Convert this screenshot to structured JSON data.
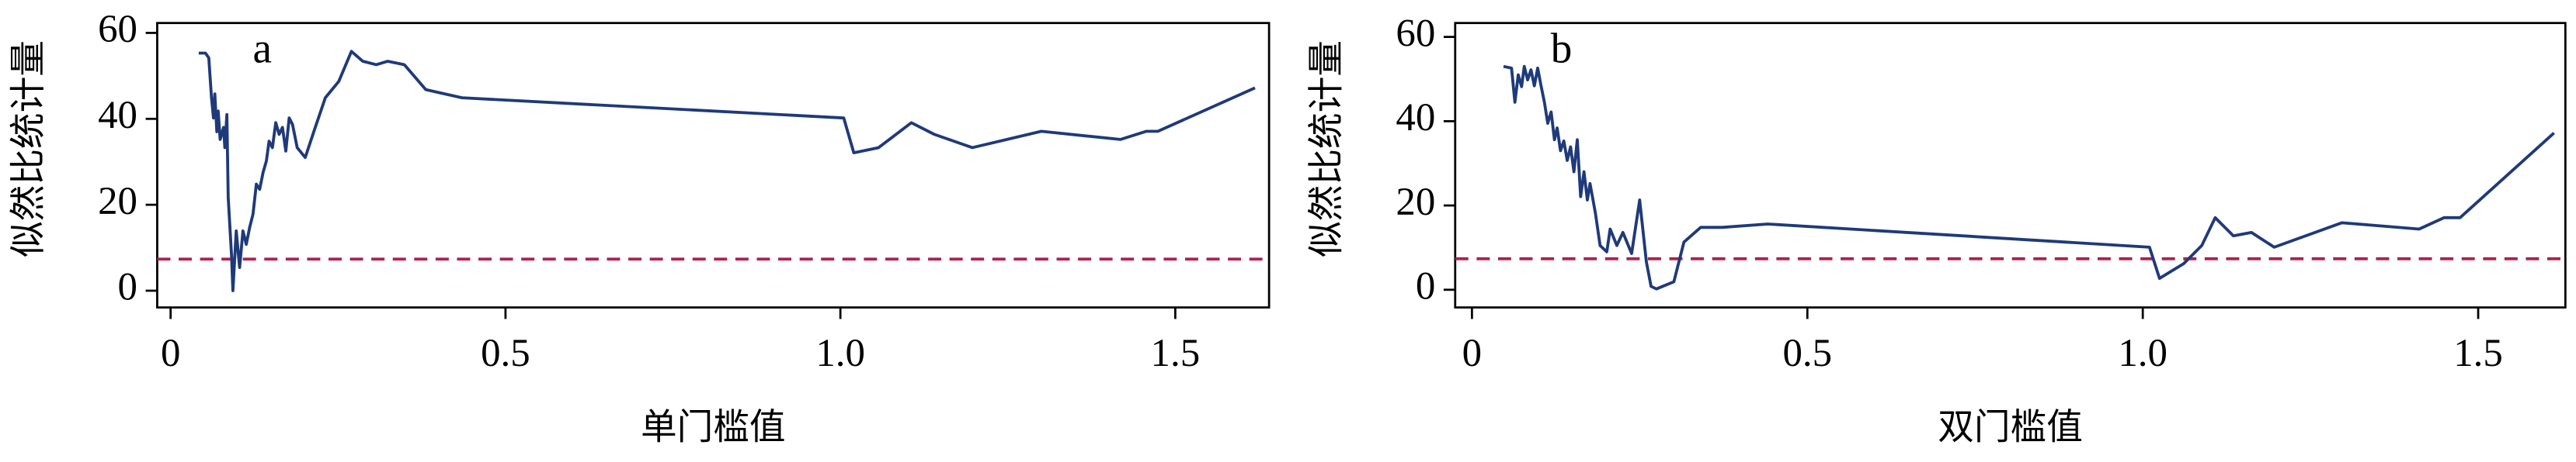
{
  "chart_data": [
    {
      "type": "line",
      "label": "a",
      "xlabel": "单门槛值",
      "ylabel": "似然比统计量",
      "x": [
        0.042,
        0.052,
        0.057,
        0.061,
        0.064,
        0.066,
        0.069,
        0.071,
        0.074,
        0.079,
        0.081,
        0.084,
        0.086,
        0.091,
        0.093,
        0.098,
        0.103,
        0.108,
        0.113,
        0.118,
        0.123,
        0.128,
        0.133,
        0.138,
        0.143,
        0.147,
        0.152,
        0.157,
        0.162,
        0.167,
        0.172,
        0.177,
        0.182,
        0.189,
        0.201,
        0.214,
        0.231,
        0.251,
        0.27,
        0.287,
        0.307,
        0.324,
        0.349,
        0.381,
        0.435,
        1.005,
        1.02,
        1.057,
        1.106,
        1.14,
        1.197,
        1.3,
        1.418,
        1.457,
        1.474,
        1.619
      ],
      "series": [
        {
          "color": "#1f3a7a",
          "values": [
            55.3,
            55.3,
            54.2,
            45,
            40.2,
            45.8,
            37,
            41.8,
            35.2,
            38,
            33.3,
            41,
            21.7,
            8.1,
            0,
            13.9,
            5.4,
            13.9,
            10.8,
            14.7,
            17.8,
            24.8,
            23.6,
            27.5,
            30.2,
            34.8,
            33.3,
            39.1,
            36.4,
            38,
            32.5,
            40.2,
            38.7,
            33.3,
            31,
            37.1,
            44.9,
            48.7,
            55.7,
            53.4,
            52.6,
            53.4,
            52.6,
            46.8,
            44.9,
            40.2,
            32.1,
            33.3,
            39.1,
            36.4,
            33.3,
            37.1,
            35.2,
            37.1,
            37.1,
            47.2
          ]
        }
      ],
      "hline": {
        "value": 7.35,
        "color": "#b0204f"
      },
      "xlim": [
        -0.02,
        1.64
      ],
      "ylim": [
        -3.9,
        62.3
      ],
      "xticks": [
        0,
        0.5,
        {
          "value": 1,
          "label": "1.0"
        },
        1.5
      ],
      "yticks": [
        0,
        20,
        40,
        60
      ]
    },
    {
      "type": "line",
      "label": "b",
      "xlabel": "双门槛值",
      "ylabel": "似然比统计量",
      "x": [
        0.047,
        0.059,
        0.064,
        0.069,
        0.074,
        0.078,
        0.083,
        0.088,
        0.093,
        0.098,
        0.103,
        0.108,
        0.113,
        0.118,
        0.123,
        0.127,
        0.132,
        0.137,
        0.142,
        0.147,
        0.152,
        0.157,
        0.162,
        0.167,
        0.172,
        0.176,
        0.184,
        0.191,
        0.201,
        0.206,
        0.216,
        0.225,
        0.238,
        0.25,
        0.26,
        0.267,
        0.275,
        0.301,
        0.316,
        0.341,
        0.373,
        0.441,
        1.01,
        1.025,
        1.061,
        1.088,
        1.108,
        1.135,
        1.162,
        1.196,
        1.297,
        1.412,
        1.449,
        1.473,
        1.613
      ],
      "series": [
        {
          "color": "#1f3a7a",
          "values": [
            53,
            52.6,
            44.5,
            51,
            48.2,
            53,
            49.8,
            52.2,
            48.4,
            52.6,
            48.4,
            44.5,
            39.5,
            42.2,
            35.6,
            38.4,
            33,
            35.3,
            30.7,
            33.9,
            28,
            35.6,
            22.1,
            28,
            21.3,
            25.2,
            18.2,
            10.5,
            9,
            14.4,
            10.5,
            13.6,
            8.6,
            21.3,
            6.6,
            0.8,
            0.2,
            1.9,
            11.3,
            14.8,
            14.8,
            15.6,
            10.1,
            2.7,
            6.2,
            10.5,
            17.1,
            12.8,
            13.6,
            10.1,
            15.9,
            14.4,
            17.1,
            17.1,
            37.2
          ]
        }
      ],
      "hline": {
        "value": 7.35,
        "color": "#b0204f"
      },
      "xlim": [
        -0.025,
        1.63
      ],
      "ylim": [
        -4.2,
        63.3
      ],
      "xticks": [
        0,
        0.5,
        {
          "value": 1,
          "label": "1.0"
        },
        1.5
      ],
      "yticks": [
        0,
        20,
        40,
        60
      ]
    }
  ]
}
